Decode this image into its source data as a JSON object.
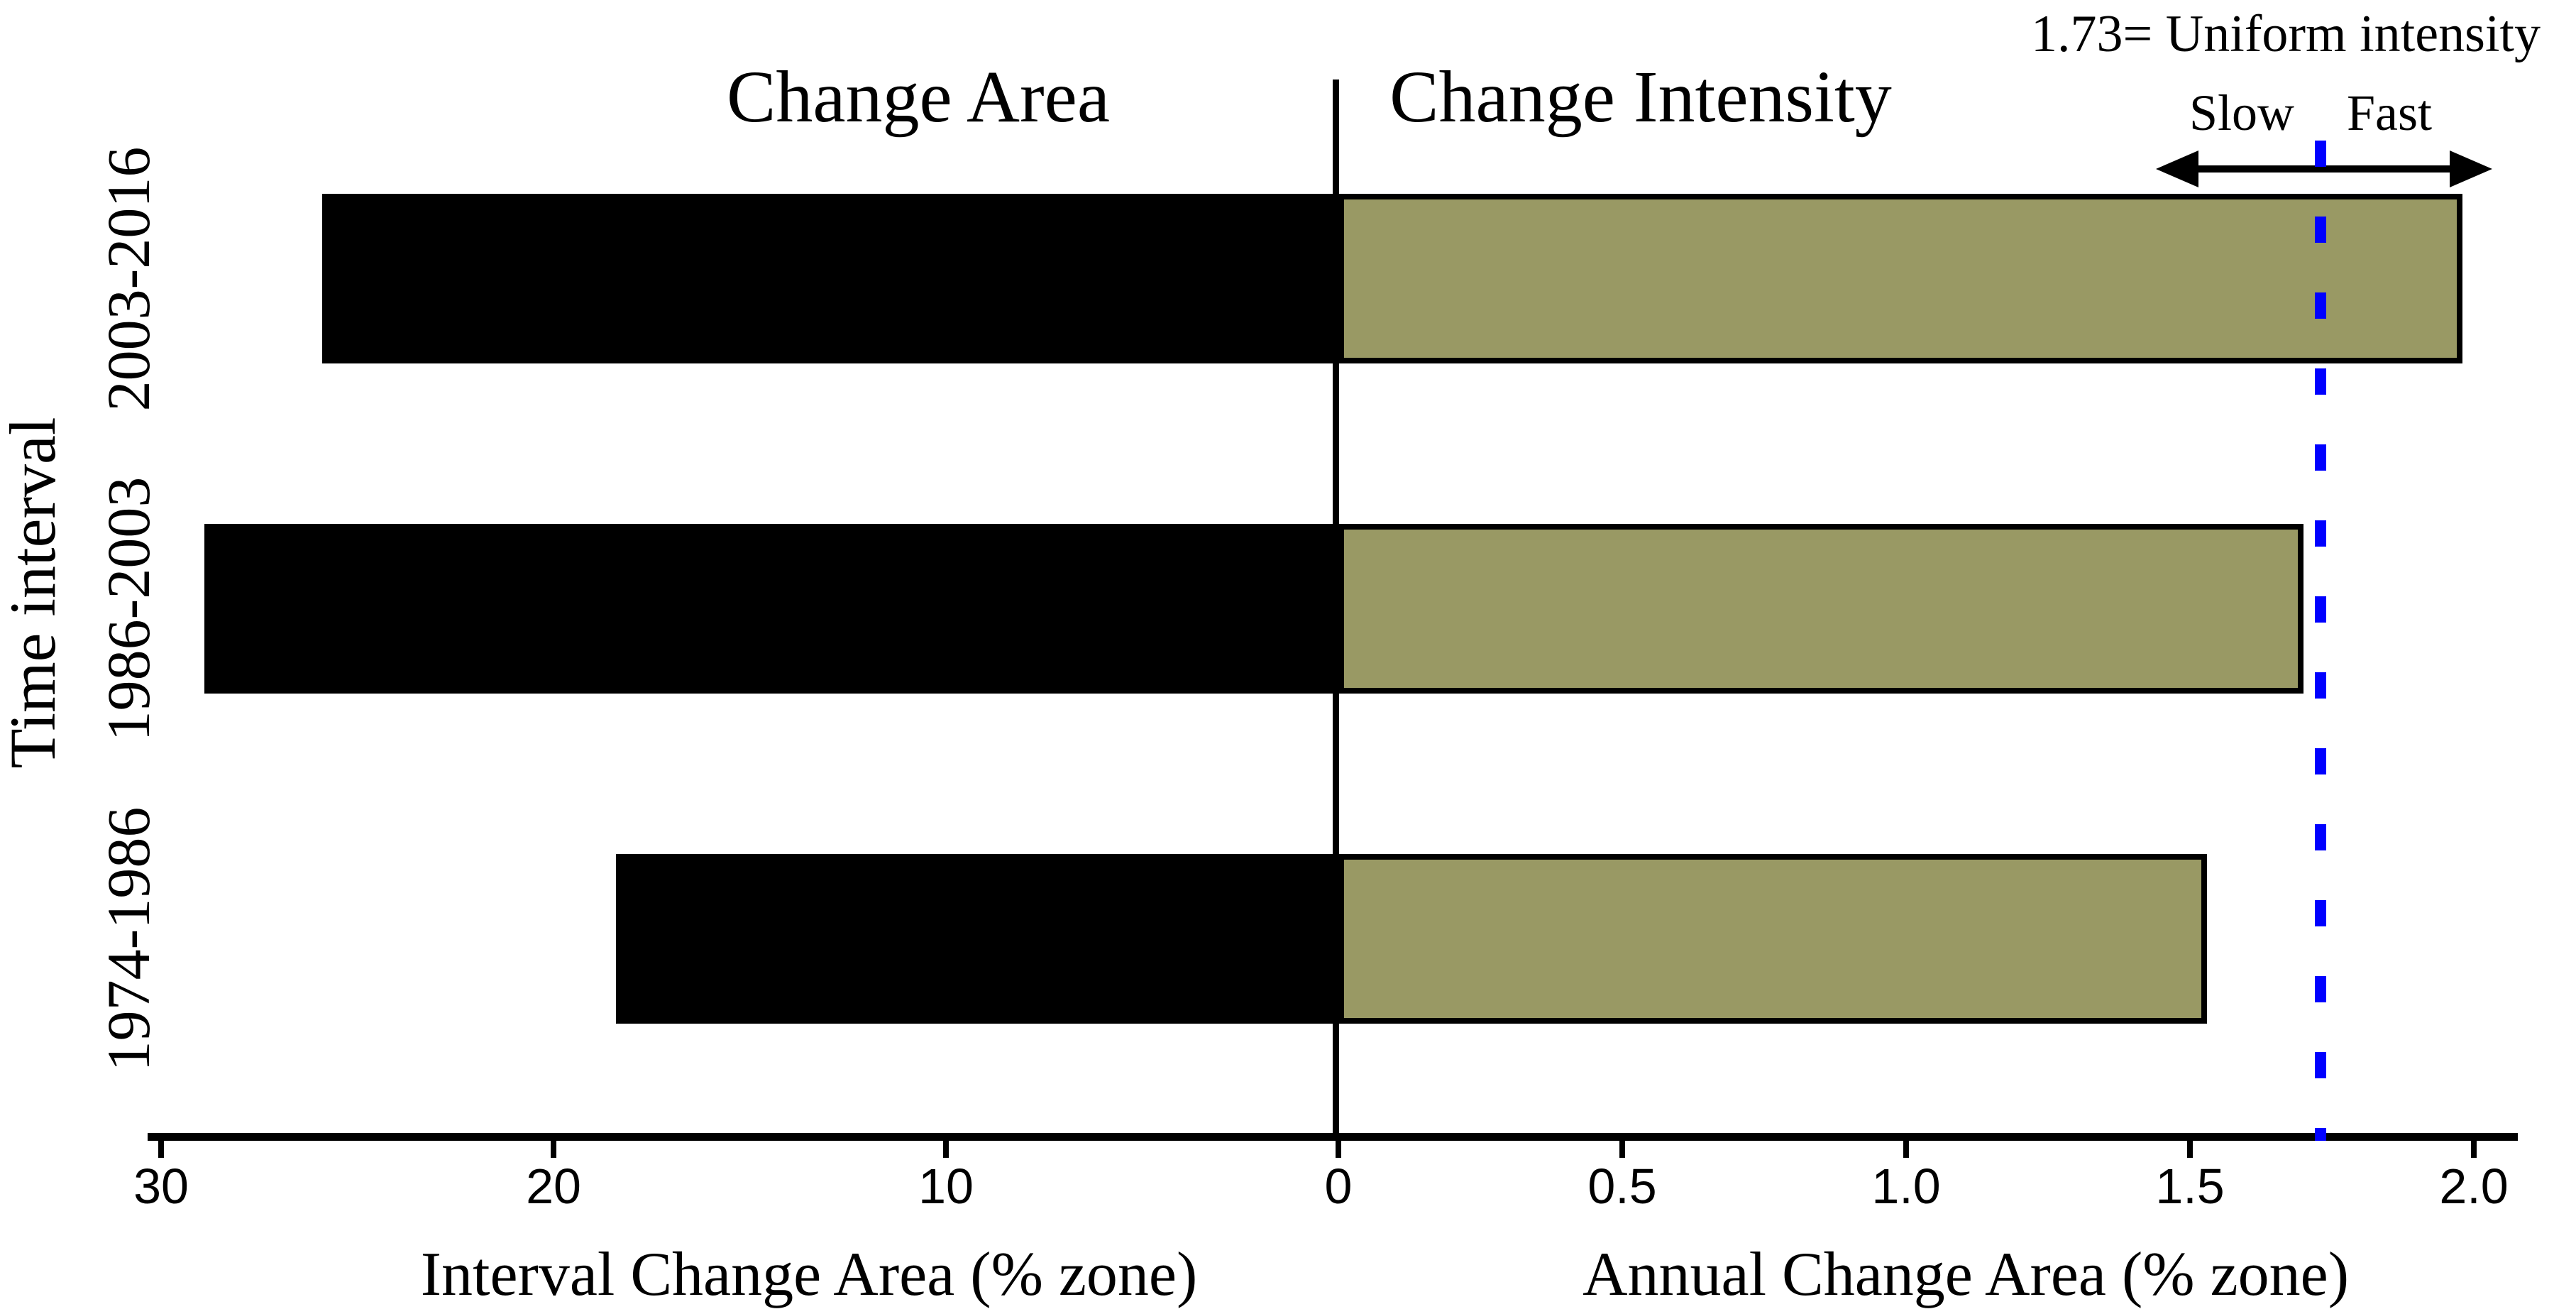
{
  "titles": {
    "left_panel": "Change Area",
    "right_panel": "Change Intensity",
    "y_axis": "Time interval",
    "left_x_axis": "Interval Change Area (% zone)",
    "right_x_axis": "Annual Change Area (% zone)"
  },
  "annotations": {
    "uniform_label": "1.73= Uniform intensity",
    "slow": "Slow",
    "fast": "Fast"
  },
  "axis": {
    "left_ticks": [
      {
        "label": "30",
        "value": 30
      },
      {
        "label": "20",
        "value": 20
      },
      {
        "label": "10",
        "value": 10
      }
    ],
    "zero_tick": {
      "label": "0",
      "value": 0
    },
    "right_ticks": [
      {
        "label": "0.5",
        "value": 0.5
      },
      {
        "label": "1.0",
        "value": 1.0
      },
      {
        "label": "1.5",
        "value": 1.5
      },
      {
        "label": "2.0",
        "value": 2.0
      }
    ]
  },
  "chart_data": {
    "type": "bar",
    "orientation": "horizontal-diverging",
    "title_left": "Change Area",
    "title_right": "Change Intensity",
    "categories": [
      "2003-2016",
      "1986-2003",
      "1974-1986"
    ],
    "series": [
      {
        "name": "Interval Change Area (% zone)",
        "side": "left",
        "values": [
          25.9,
          28.9,
          18.4
        ],
        "color": "#000000"
      },
      {
        "name": "Annual Change Area (% zone)",
        "side": "right",
        "values": [
          1.98,
          1.7,
          1.53
        ],
        "color": "#999964",
        "border_color": "#000000"
      }
    ],
    "left_axis": {
      "label": "Interval Change Area (% zone)",
      "range": [
        30,
        0
      ],
      "ticks": [
        30,
        20,
        10,
        0
      ]
    },
    "right_axis": {
      "label": "Annual Change Area (% zone)",
      "range": [
        0,
        2.07
      ],
      "ticks": [
        0,
        0.5,
        1.0,
        1.5,
        2.0
      ]
    },
    "uniform_intensity": {
      "value": 1.73,
      "label": "1.73= Uniform intensity",
      "line_color": "#0000ff",
      "line_style": "dashed"
    },
    "annotations": {
      "slow": "Slow",
      "fast": "Fast"
    },
    "grid": false,
    "ylabel": "Time interval"
  }
}
